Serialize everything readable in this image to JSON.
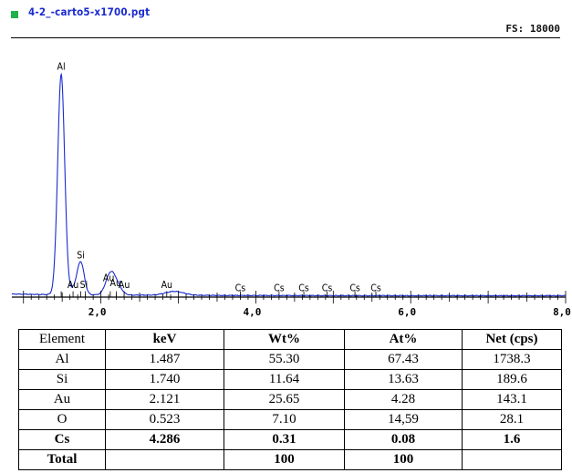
{
  "header": {
    "file_title": "4-2_-carto5-x1700.pgt",
    "full_scale": "FS: 18000",
    "legend_color": "#1eb34a"
  },
  "colors": {
    "spectrum": "#1a2bd0",
    "text": "#000000"
  },
  "chart_data": {
    "type": "line",
    "title": "4-2_-carto5-x1700.pgt",
    "xlabel": "",
    "ylabel": "",
    "xlim": [
      0.85,
      8.0
    ],
    "ylim": [
      0,
      18000
    ],
    "x_ticks": [
      2.0,
      4.0,
      6.0,
      8.0
    ],
    "x_tick_labels": [
      "2,0",
      "4,0",
      "6,0",
      "8,0"
    ],
    "grid": false,
    "series": [
      {
        "peaks": [
          {
            "center": 1.487,
            "height": 15870,
            "width": 0.045
          },
          {
            "center": 1.74,
            "height": 2280,
            "width": 0.045
          },
          {
            "center": 2.121,
            "height": 1470,
            "width": 0.06
          },
          {
            "center": 2.21,
            "height": 600,
            "width": 0.06
          },
          {
            "center": 2.95,
            "height": 280,
            "width": 0.12
          },
          {
            "center": 1.66,
            "height": 400,
            "width": 0.05
          }
        ],
        "baseline": 100
      }
    ],
    "peak_labels": [
      {
        "label": "Al",
        "x": 1.487,
        "y": 16400
      },
      {
        "label": "Si",
        "x": 1.74,
        "y": 2800
      },
      {
        "label": "Au",
        "x": 1.64,
        "y": 650
      },
      {
        "label": "Si",
        "x": 1.78,
        "y": 650
      },
      {
        "label": "Au",
        "x": 2.1,
        "y": 1150
      },
      {
        "label": "Au",
        "x": 2.19,
        "y": 800
      },
      {
        "label": "Au",
        "x": 2.3,
        "y": 650
      },
      {
        "label": "Au",
        "x": 2.85,
        "y": 650
      },
      {
        "label": "Cs",
        "x": 3.8,
        "y": 430
      },
      {
        "label": "Cs",
        "x": 4.3,
        "y": 430
      },
      {
        "label": "Cs",
        "x": 4.62,
        "y": 430
      },
      {
        "label": "Cs",
        "x": 4.92,
        "y": 430
      },
      {
        "label": "Cs",
        "x": 5.28,
        "y": 430
      },
      {
        "label": "Cs",
        "x": 5.55,
        "y": 430
      }
    ],
    "marker_lines": [
      1.487,
      1.74,
      1.64,
      1.8,
      2.121,
      2.2,
      2.3,
      2.85,
      3.8,
      4.3,
      4.62,
      4.92,
      5.28,
      5.55
    ]
  },
  "table": {
    "headers": [
      "Element",
      "keV",
      "Wt%",
      "At%",
      "Net (cps)"
    ],
    "rows": [
      [
        "Al",
        "1.487",
        "55.30",
        "67.43",
        "1738.3"
      ],
      [
        "Si",
        "1.740",
        "11.64",
        "13.63",
        "189.6"
      ],
      [
        "Au",
        "2.121",
        "25.65",
        "4.28",
        "143.1"
      ],
      [
        "O",
        "0.523",
        "7.10",
        "14,59",
        "28.1"
      ],
      [
        "Cs",
        "4.286",
        "0.31",
        "0.08",
        "1.6"
      ],
      [
        "Total",
        "",
        "100",
        "100",
        ""
      ]
    ],
    "bold_rows": [
      4,
      5
    ]
  }
}
